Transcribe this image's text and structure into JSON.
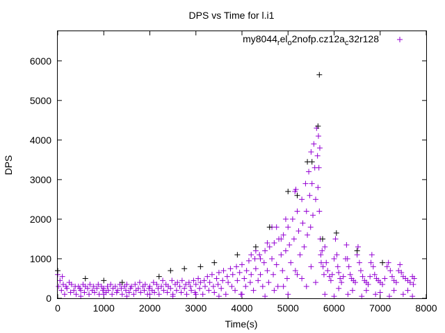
{
  "chart_data": {
    "type": "scatter",
    "title": "DPS vs Time for l.i1",
    "xlabel": "Time(s)",
    "ylabel": "DPS",
    "xlim": [
      0,
      8000
    ],
    "ylim": [
      0,
      6750
    ],
    "xticks": [
      0,
      1000,
      2000,
      3000,
      4000,
      5000,
      6000,
      7000,
      8000
    ],
    "yticks": [
      0,
      1000,
      2000,
      3000,
      4000,
      5000,
      6000
    ],
    "grid": false,
    "legend_position": "top-right",
    "series": [
      {
        "name": "my8044",
        "name_parts": [
          {
            "t": "my8044",
            "sub": false
          },
          {
            "t": "r",
            "sub": true
          },
          {
            "t": "el",
            "sub": false
          },
          {
            "t": "o",
            "sub": true
          },
          {
            "t": "2nofp.cz12a",
            "sub": false
          },
          {
            "t": "c",
            "sub": true
          },
          {
            "t": "32r128",
            "sub": false
          }
        ],
        "color": "#9400d3",
        "points": [
          [
            0,
            600
          ],
          [
            20,
            300
          ],
          [
            50,
            450
          ],
          [
            80,
            200
          ],
          [
            100,
            550
          ],
          [
            120,
            350
          ],
          [
            150,
            100
          ],
          [
            180,
            300
          ],
          [
            200,
            250
          ],
          [
            250,
            400
          ],
          [
            280,
            150
          ],
          [
            300,
            350
          ],
          [
            350,
            200
          ],
          [
            380,
            300
          ],
          [
            400,
            100
          ],
          [
            450,
            300
          ],
          [
            480,
            250
          ],
          [
            500,
            200
          ],
          [
            550,
            350
          ],
          [
            580,
            150
          ],
          [
            600,
            300
          ],
          [
            650,
            250
          ],
          [
            680,
            100
          ],
          [
            700,
            350
          ],
          [
            750,
            200
          ],
          [
            780,
            300
          ],
          [
            800,
            150
          ],
          [
            850,
            250
          ],
          [
            880,
            350
          ],
          [
            900,
            100
          ],
          [
            950,
            300
          ],
          [
            980,
            200
          ],
          [
            1000,
            250
          ],
          [
            1050,
            150
          ],
          [
            1080,
            300
          ],
          [
            1100,
            200
          ],
          [
            1150,
            350
          ],
          [
            1180,
            100
          ],
          [
            1200,
            250
          ],
          [
            1250,
            300
          ],
          [
            1280,
            150
          ],
          [
            1300,
            200
          ],
          [
            1350,
            350
          ],
          [
            1380,
            250
          ],
          [
            1400,
            100
          ],
          [
            1450,
            300
          ],
          [
            1480,
            200
          ],
          [
            1500,
            350
          ],
          [
            1550,
            150
          ],
          [
            1580,
            250
          ],
          [
            1600,
            300
          ],
          [
            1650,
            100
          ],
          [
            1680,
            350
          ],
          [
            1700,
            200
          ],
          [
            1750,
            250
          ],
          [
            1780,
            400
          ],
          [
            1800,
            150
          ],
          [
            1850,
            300
          ],
          [
            1880,
            200
          ],
          [
            1900,
            350
          ],
          [
            1950,
            100
          ],
          [
            1980,
            250
          ],
          [
            2000,
            300
          ],
          [
            2050,
            200
          ],
          [
            2080,
            400
          ],
          [
            2100,
            150
          ],
          [
            2150,
            350
          ],
          [
            2180,
            250
          ],
          [
            2200,
            100
          ],
          [
            2250,
            300
          ],
          [
            2280,
            450
          ],
          [
            2300,
            200
          ],
          [
            2350,
            350
          ],
          [
            2380,
            150
          ],
          [
            2400,
            300
          ],
          [
            2450,
            250
          ],
          [
            2480,
            450
          ],
          [
            2500,
            100
          ],
          [
            2550,
            350
          ],
          [
            2580,
            200
          ],
          [
            2600,
            400
          ],
          [
            2650,
            300
          ],
          [
            2680,
            150
          ],
          [
            2700,
            450
          ],
          [
            2750,
            250
          ],
          [
            2780,
            350
          ],
          [
            2800,
            100
          ],
          [
            2850,
            400
          ],
          [
            2880,
            300
          ],
          [
            2900,
            200
          ],
          [
            2950,
            450
          ],
          [
            2980,
            150
          ],
          [
            3000,
            350
          ],
          [
            3050,
            500
          ],
          [
            3080,
            250
          ],
          [
            3100,
            400
          ],
          [
            3150,
            100
          ],
          [
            3180,
            450
          ],
          [
            3200,
            300
          ],
          [
            3250,
            550
          ],
          [
            3280,
            200
          ],
          [
            3300,
            400
          ],
          [
            3350,
            600
          ],
          [
            3380,
            300
          ],
          [
            3400,
            150
          ],
          [
            3450,
            500
          ],
          [
            3480,
            350
          ],
          [
            3500,
            650
          ],
          [
            3550,
            250
          ],
          [
            3580,
            450
          ],
          [
            3600,
            700
          ],
          [
            3650,
            100
          ],
          [
            3680,
            550
          ],
          [
            3700,
            400
          ],
          [
            3750,
            750
          ],
          [
            3780,
            300
          ],
          [
            3800,
            600
          ],
          [
            3850,
            200
          ],
          [
            3880,
            800
          ],
          [
            3900,
            450
          ],
          [
            3950,
            650
          ],
          [
            3980,
            100
          ],
          [
            4000,
            850
          ],
          [
            4050,
            500
          ],
          [
            4080,
            300
          ],
          [
            4100,
            700
          ],
          [
            4150,
            950
          ],
          [
            4180,
            400
          ],
          [
            4200,
            600
          ],
          [
            4250,
            200
          ],
          [
            4280,
            1000
          ],
          [
            4300,
            750
          ],
          [
            4350,
            450
          ],
          [
            4380,
            1100
          ],
          [
            4400,
            600
          ],
          [
            4450,
            300
          ],
          [
            4480,
            900
          ],
          [
            4500,
            1200
          ],
          [
            4550,
            700
          ],
          [
            4580,
            400
          ],
          [
            4600,
            1300
          ],
          [
            4650,
            1000
          ],
          [
            4680,
            600
          ],
          [
            4700,
            1400
          ],
          [
            4750,
            850
          ],
          [
            4780,
            300
          ],
          [
            4800,
            1500
          ],
          [
            4850,
            1100
          ],
          [
            4880,
            700
          ],
          [
            4900,
            1600
          ],
          [
            4950,
            1200
          ],
          [
            4980,
            500
          ],
          [
            5000,
            1800
          ],
          [
            5030,
            1350
          ],
          [
            5060,
            900
          ],
          [
            5100,
            2000
          ],
          [
            5130,
            1500
          ],
          [
            5160,
            700
          ],
          [
            5200,
            2200
          ],
          [
            5230,
            1700
          ],
          [
            5260,
            1100
          ],
          [
            5300,
            2500
          ],
          [
            5320,
            1900
          ],
          [
            5350,
            1300
          ],
          [
            5380,
            2900
          ],
          [
            5400,
            2200
          ],
          [
            5420,
            1600
          ],
          [
            5450,
            3200
          ],
          [
            5470,
            2600
          ],
          [
            5490,
            1800
          ],
          [
            5500,
            3700
          ],
          [
            5520,
            2900
          ],
          [
            5540,
            2100
          ],
          [
            5560,
            3900
          ],
          [
            5580,
            3300
          ],
          [
            5600,
            2500
          ],
          [
            5620,
            4300
          ],
          [
            5640,
            3600
          ],
          [
            5650,
            2800
          ],
          [
            5660,
            4100
          ],
          [
            5670,
            3300
          ],
          [
            5680,
            2200
          ],
          [
            5690,
            3800
          ],
          [
            5700,
            1500
          ],
          [
            5710,
            1100
          ],
          [
            5720,
            900
          ],
          [
            5740,
            1200
          ],
          [
            5760,
            800
          ],
          [
            5780,
            600
          ],
          [
            5800,
            1300
          ],
          [
            5830,
            900
          ],
          [
            5860,
            700
          ],
          [
            5900,
            550
          ],
          [
            5930,
            450
          ],
          [
            5960,
            600
          ],
          [
            6000,
            1000
          ],
          [
            6030,
            1500
          ],
          [
            6060,
            1100
          ],
          [
            6080,
            800
          ],
          [
            6100,
            650
          ],
          [
            6130,
            500
          ],
          [
            6160,
            400
          ],
          [
            6200,
            550
          ],
          [
            6250,
            1000
          ],
          [
            6270,
            1350
          ],
          [
            6290,
            1000
          ],
          [
            6320,
            800
          ],
          [
            6350,
            600
          ],
          [
            6380,
            500
          ],
          [
            6420,
            450
          ],
          [
            6460,
            400
          ],
          [
            6500,
            1100
          ],
          [
            6520,
            1300
          ],
          [
            6550,
            900
          ],
          [
            6580,
            700
          ],
          [
            6620,
            550
          ],
          [
            6660,
            450
          ],
          [
            6700,
            400
          ],
          [
            6740,
            350
          ],
          [
            6780,
            550
          ],
          [
            6800,
            900
          ],
          [
            6820,
            1100
          ],
          [
            6850,
            800
          ],
          [
            6880,
            600
          ],
          [
            6920,
            500
          ],
          [
            6960,
            450
          ],
          [
            7000,
            400
          ],
          [
            7050,
            350
          ],
          [
            7100,
            500
          ],
          [
            7150,
            800
          ],
          [
            7180,
            900
          ],
          [
            7220,
            700
          ],
          [
            7260,
            550
          ],
          [
            7300,
            450
          ],
          [
            7350,
            400
          ],
          [
            7400,
            700
          ],
          [
            7430,
            850
          ],
          [
            7460,
            650
          ],
          [
            7500,
            550
          ],
          [
            7550,
            500
          ],
          [
            7600,
            450
          ],
          [
            7650,
            400
          ],
          [
            7700,
            550
          ],
          [
            7720,
            350
          ],
          [
            7740,
            500
          ],
          [
            5150,
            2700
          ],
          [
            5170,
            2750
          ],
          [
            4950,
            2000
          ],
          [
            4850,
            1500
          ],
          [
            4750,
            1800
          ],
          [
            4650,
            1800
          ],
          [
            4550,
            1400
          ],
          [
            4400,
            1000
          ],
          [
            4300,
            1200
          ],
          [
            4200,
            1100
          ],
          [
            5800,
            100
          ],
          [
            6000,
            50
          ],
          [
            6300,
            100
          ],
          [
            6600,
            50
          ],
          [
            6900,
            100
          ],
          [
            7200,
            50
          ],
          [
            7500,
            100
          ],
          [
            7700,
            50
          ],
          [
            5000,
            100
          ],
          [
            4500,
            50
          ],
          [
            4000,
            100
          ],
          [
            3500,
            50
          ],
          [
            3000,
            100
          ],
          [
            2500,
            50
          ],
          [
            2000,
            100
          ],
          [
            1500,
            50
          ],
          [
            1000,
            100
          ],
          [
            500,
            50
          ],
          [
            5400,
            300
          ],
          [
            5300,
            500
          ],
          [
            5600,
            400
          ],
          [
            5500,
            800
          ],
          [
            5200,
            600
          ],
          [
            4900,
            300
          ],
          [
            4700,
            200
          ],
          [
            6100,
            250
          ],
          [
            6400,
            200
          ],
          [
            6700,
            200
          ],
          [
            7000,
            150
          ],
          [
            7300,
            200
          ],
          [
            7600,
            200
          ]
        ]
      },
      {
        "name": "",
        "color": "#000000",
        "points": [
          [
            5680,
            5650
          ],
          [
            5650,
            4350
          ],
          [
            5520,
            3450
          ],
          [
            5420,
            3450
          ],
          [
            6050,
            1650
          ],
          [
            4600,
            1800
          ],
          [
            2450,
            700
          ],
          [
            2750,
            750
          ],
          [
            3100,
            800
          ],
          [
            1000,
            450
          ],
          [
            600,
            500
          ],
          [
            3400,
            900
          ],
          [
            3900,
            1100
          ],
          [
            0,
            700
          ],
          [
            5200,
            2600
          ],
          [
            5000,
            2700
          ],
          [
            5750,
            1500
          ],
          [
            4300,
            1300
          ],
          [
            1400,
            400
          ],
          [
            2200,
            550
          ],
          [
            6500,
            1200
          ],
          [
            7050,
            900
          ]
        ]
      }
    ]
  }
}
